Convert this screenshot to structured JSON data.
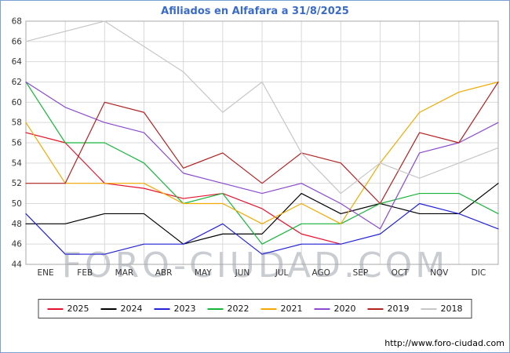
{
  "title": "Afiliados en Alfafara a 31/8/2025",
  "watermark": "FORO-CIUDAD.COM",
  "footer_url": "http://www.foro-ciudad.com",
  "colors": {
    "title": "#3a6bc9",
    "grid": "#d9d9d9",
    "axis_border": "#a9a9a9",
    "tick_text": "#333333",
    "watermark": "#c9ccd1",
    "frame_border": "#7aa0d4"
  },
  "chart_data": {
    "type": "line",
    "title": "Afiliados en Alfafara a 31/8/2025",
    "xlabel": "",
    "ylabel": "",
    "categories": [
      "ENE",
      "FEB",
      "MAR",
      "ABR",
      "MAY",
      "JUN",
      "JUL",
      "AGO",
      "SEP",
      "OCT",
      "NOV",
      "DIC"
    ],
    "ylim": [
      44,
      68
    ],
    "ytick_step": 2,
    "grid": true,
    "legend_position": "bottom",
    "series": [
      {
        "name": "2025",
        "color": "#e8112d",
        "values": [
          57,
          56,
          52,
          51.5,
          50.5,
          51,
          49.5,
          47,
          46
        ]
      },
      {
        "name": "2024",
        "color": "#000000",
        "values": [
          48,
          48,
          49,
          49,
          46,
          47,
          47,
          51,
          49,
          50,
          49,
          49,
          52
        ]
      },
      {
        "name": "2023",
        "color": "#2323d8",
        "values": [
          49,
          45,
          45,
          46,
          46,
          48,
          45,
          46,
          46,
          47,
          50,
          49,
          47.5
        ]
      },
      {
        "name": "2022",
        "color": "#17b63b",
        "values": [
          62,
          56,
          56,
          54,
          50,
          51,
          46,
          48,
          48,
          50,
          51,
          51,
          49
        ]
      },
      {
        "name": "2021",
        "color": "#f2a900",
        "values": [
          58,
          52,
          52,
          52,
          50,
          50,
          48,
          50,
          48,
          54,
          59,
          61,
          62
        ]
      },
      {
        "name": "2020",
        "color": "#8a4bd0",
        "values": [
          62,
          59.5,
          58,
          57,
          53,
          52,
          51,
          52,
          50,
          47.5,
          55,
          56,
          58
        ]
      },
      {
        "name": "2019",
        "color": "#b22222",
        "values": [
          52,
          52,
          60,
          59,
          53.5,
          55,
          52,
          55,
          54,
          50,
          57,
          56,
          62
        ]
      },
      {
        "name": "2018",
        "color": "#c6c6c6",
        "values": [
          66,
          67,
          68,
          65.5,
          63,
          59,
          62,
          55,
          51,
          54,
          52.5,
          54,
          55.5
        ]
      }
    ]
  }
}
